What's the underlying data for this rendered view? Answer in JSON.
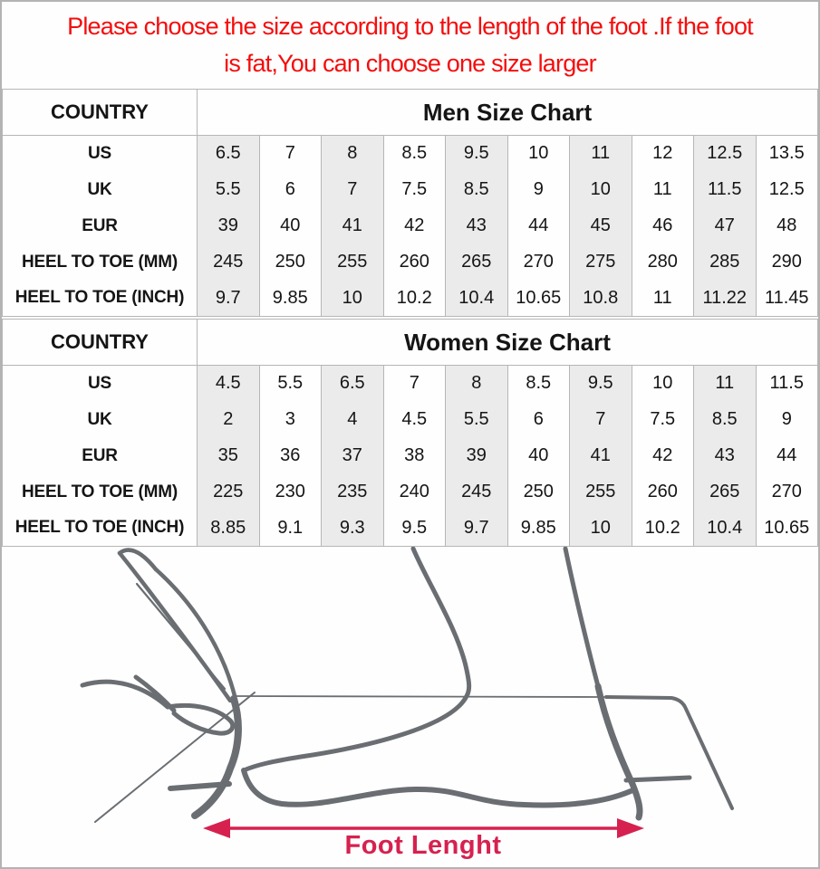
{
  "notice": {
    "line1": "Please choose the size according to the length of the foot .If the foot",
    "line2": "is fat,You can choose one size larger"
  },
  "men_chart": {
    "country_label": "COUNTRY",
    "title": "Men Size Chart",
    "rows": [
      {
        "label": "US",
        "values": [
          "6.5",
          "7",
          "8",
          "8.5",
          "9.5",
          "10",
          "11",
          "12",
          "12.5",
          "13.5"
        ]
      },
      {
        "label": "UK",
        "values": [
          "5.5",
          "6",
          "7",
          "7.5",
          "8.5",
          "9",
          "10",
          "11",
          "11.5",
          "12.5"
        ]
      },
      {
        "label": "EUR",
        "values": [
          "39",
          "40",
          "41",
          "42",
          "43",
          "44",
          "45",
          "46",
          "47",
          "48"
        ]
      },
      {
        "label": "HEEL TO TOE (MM)",
        "values": [
          "245",
          "250",
          "255",
          "260",
          "265",
          "270",
          "275",
          "280",
          "285",
          "290"
        ]
      },
      {
        "label": "HEEL TO TOE (INCH)",
        "values": [
          "9.7",
          "9.85",
          "10",
          "10.2",
          "10.4",
          "10.65",
          "10.8",
          "11",
          "11.22",
          "11.45"
        ]
      }
    ]
  },
  "women_chart": {
    "country_label": "COUNTRY",
    "title": "Women Size Chart",
    "rows": [
      {
        "label": "US",
        "values": [
          "4.5",
          "5.5",
          "6.5",
          "7",
          "8",
          "8.5",
          "9.5",
          "10",
          "11",
          "11.5"
        ]
      },
      {
        "label": "UK",
        "values": [
          "2",
          "3",
          "4",
          "4.5",
          "5.5",
          "6",
          "7",
          "7.5",
          "8.5",
          "9"
        ]
      },
      {
        "label": "EUR",
        "values": [
          "35",
          "36",
          "37",
          "38",
          "39",
          "40",
          "41",
          "42",
          "43",
          "44"
        ]
      },
      {
        "label": "HEEL TO TOE (MM)",
        "values": [
          "225",
          "230",
          "235",
          "240",
          "245",
          "250",
          "255",
          "260",
          "265",
          "270"
        ]
      },
      {
        "label": "HEEL TO TOE (INCH)",
        "values": [
          "8.85",
          "9.1",
          "9.3",
          "9.5",
          "9.7",
          "9.85",
          "10",
          "10.2",
          "10.4",
          "10.65"
        ]
      }
    ]
  },
  "diagram": {
    "arrow_label": "Foot Lenght"
  },
  "colors": {
    "notice_red": "#f50d0d",
    "accent_crimson": "#d6214f",
    "shaded_column": "#ebebeb",
    "grid_line": "#b6b6b6",
    "drawing_gray": "#6a6e72"
  }
}
